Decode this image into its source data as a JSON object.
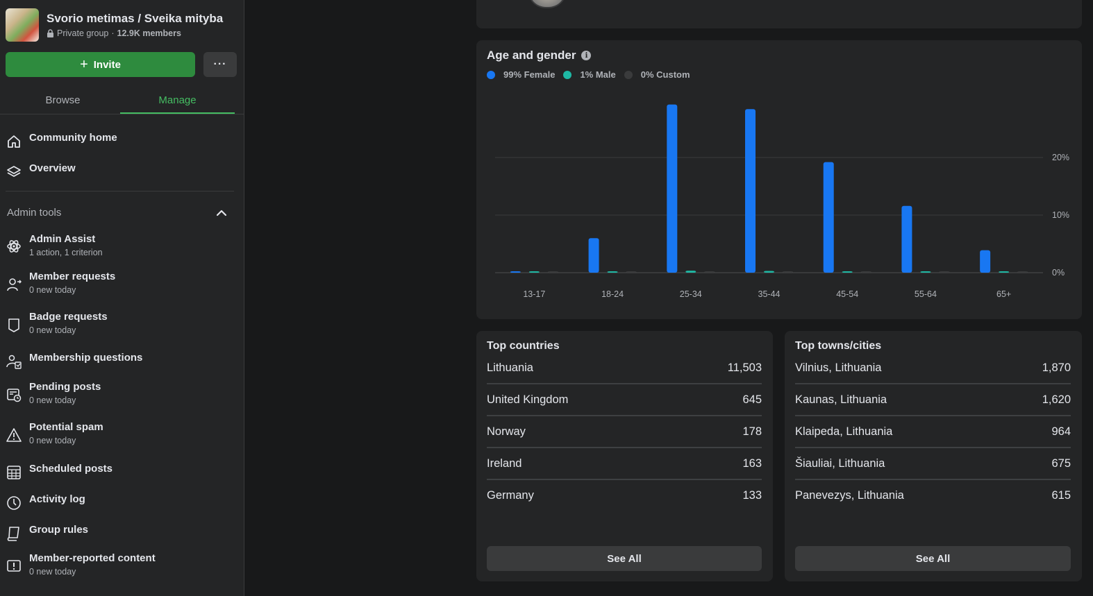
{
  "group": {
    "name": "Svorio metimas / Sveika mityba",
    "privacy": "Private group",
    "separator": "·",
    "members": "12.9K members"
  },
  "actions": {
    "invite_label": "Invite",
    "more_label": "···"
  },
  "tabs": [
    {
      "label": "Browse",
      "active": false
    },
    {
      "label": "Manage",
      "active": true
    }
  ],
  "nav": {
    "community_home": "Community home",
    "overview": "Overview"
  },
  "admin_tools": {
    "heading": "Admin tools",
    "items": [
      {
        "label": "Admin Assist",
        "sub": "1 action, 1 criterion",
        "icon": "atom-icon"
      },
      {
        "label": "Member requests",
        "sub": "0 new today",
        "icon": "person-add-icon"
      },
      {
        "label": "Badge requests",
        "sub": "0 new today",
        "icon": "badge-icon"
      },
      {
        "label": "Membership questions",
        "sub": "",
        "icon": "clipboard-person-icon"
      },
      {
        "label": "Pending posts",
        "sub": "0 new today",
        "icon": "pending-post-icon"
      },
      {
        "label": "Potential spam",
        "sub": "0 new today",
        "icon": "warning-icon"
      },
      {
        "label": "Scheduled posts",
        "sub": "",
        "icon": "calendar-icon"
      },
      {
        "label": "Activity log",
        "sub": "",
        "icon": "clock-icon"
      },
      {
        "label": "Group rules",
        "sub": "",
        "icon": "book-icon"
      },
      {
        "label": "Member-reported content",
        "sub": "0 new today",
        "icon": "report-icon"
      }
    ]
  },
  "age_gender": {
    "title": "Age and gender",
    "info_glyph": "i",
    "legend": [
      {
        "label": "99% Female",
        "color": "#1877f2"
      },
      {
        "label": "1% Male",
        "color": "#1eb8a4"
      },
      {
        "label": "0% Custom",
        "color": "#3a3b3c"
      }
    ]
  },
  "chart_data": {
    "type": "bar",
    "categories": [
      "13-17",
      "18-24",
      "25-34",
      "35-44",
      "45-54",
      "55-64",
      "65+"
    ],
    "series": [
      {
        "name": "Female",
        "color": "#1877f2",
        "values": [
          0.2,
          6,
          29.2,
          28.4,
          19.2,
          11.6,
          3.9
        ]
      },
      {
        "name": "Male",
        "color": "#1eb8a4",
        "values": [
          0.05,
          0.15,
          0.35,
          0.3,
          0.1,
          0.1,
          0.05
        ]
      },
      {
        "name": "Custom",
        "color": "#3a3b3c",
        "values": [
          0,
          0,
          0,
          0.1,
          0,
          0,
          0
        ]
      }
    ],
    "yticks": [
      {
        "value": 0,
        "label": "0%"
      },
      {
        "value": 10,
        "label": "10%"
      },
      {
        "value": 20,
        "label": "20%"
      }
    ],
    "ylim": [
      0,
      30
    ],
    "grid": true
  },
  "top_countries": {
    "title": "Top countries",
    "rows": [
      {
        "name": "Lithuania",
        "count": "11,503"
      },
      {
        "name": "United Kingdom",
        "count": "645"
      },
      {
        "name": "Norway",
        "count": "178"
      },
      {
        "name": "Ireland",
        "count": "163"
      },
      {
        "name": "Germany",
        "count": "133"
      }
    ],
    "see_all": "See All"
  },
  "top_cities": {
    "title": "Top towns/cities",
    "rows": [
      {
        "name": "Vilnius, Lithuania",
        "count": "1,870"
      },
      {
        "name": "Kaunas, Lithuania",
        "count": "1,620"
      },
      {
        "name": "Klaipeda, Lithuania",
        "count": "964"
      },
      {
        "name": "Šiauliai, Lithuania",
        "count": "675"
      },
      {
        "name": "Panevezys, Lithuania",
        "count": "615"
      }
    ],
    "see_all": "See All"
  }
}
